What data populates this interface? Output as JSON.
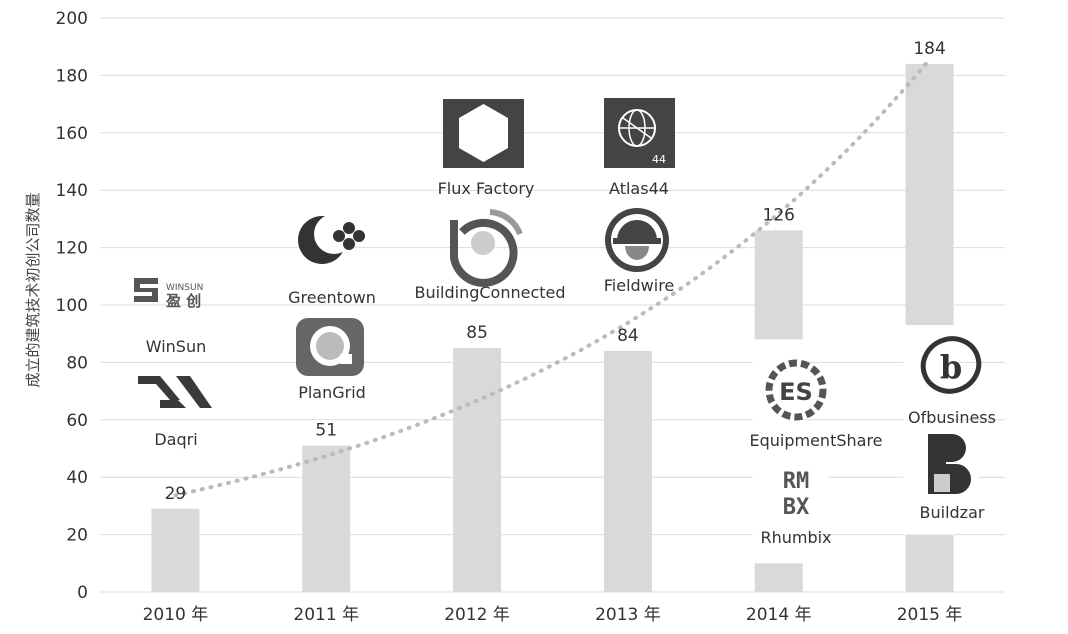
{
  "chart_data": {
    "type": "bar",
    "ylabel": "成立的建筑技术初创公司数量",
    "xlabel": "",
    "ylim": [
      0,
      200
    ],
    "y_ticks": [
      0,
      20,
      40,
      60,
      80,
      100,
      120,
      140,
      160,
      180,
      200
    ],
    "grid": true,
    "categories": [
      "2010 年",
      "2011 年",
      "2012 年",
      "2013 年",
      "2014 年",
      "2015 年"
    ],
    "values": [
      29,
      51,
      85,
      84,
      126,
      184
    ],
    "value_labels": [
      "29",
      "51",
      "85",
      "84",
      "126",
      "184"
    ],
    "trendline": {
      "style": "dotted",
      "type": "exponential"
    },
    "bar_color": "#d9d9d9",
    "trend_color": "#bbbbbb",
    "companies": [
      {
        "year": "2010 年",
        "name": "WinSun",
        "icon": "winsun-logo",
        "logo_text": "WINSUN 盈创"
      },
      {
        "year": "2010 年",
        "name": "Daqri",
        "icon": "daqri-logo"
      },
      {
        "year": "2011 年",
        "name": "Greentown",
        "icon": "greentown-logo"
      },
      {
        "year": "2011 年",
        "name": "PlanGrid",
        "icon": "plangrid-logo"
      },
      {
        "year": "2012 年",
        "name": "Flux Factory",
        "icon": "flux-factory-logo"
      },
      {
        "year": "2012 年",
        "name": "BuildingConnected",
        "icon": "buildingconnected-logo"
      },
      {
        "year": "2013 年",
        "name": "Atlas44",
        "icon": "atlas44-logo",
        "logo_text": "44"
      },
      {
        "year": "2013 年",
        "name": "Fieldwire",
        "icon": "fieldwire-logo"
      },
      {
        "year": "2014 年",
        "name": "EquipmentShare",
        "icon": "equipmentshare-logo",
        "logo_text": "ES"
      },
      {
        "year": "2014 年",
        "name": "Rhumbix",
        "icon": "rhumbix-logo",
        "logo_text": "RMBX"
      },
      {
        "year": "2015 年",
        "name": "Ofbusiness",
        "icon": "ofbusiness-logo",
        "logo_text": "b"
      },
      {
        "year": "2015 年",
        "name": "Buildzar",
        "icon": "buildzar-logo"
      }
    ]
  }
}
